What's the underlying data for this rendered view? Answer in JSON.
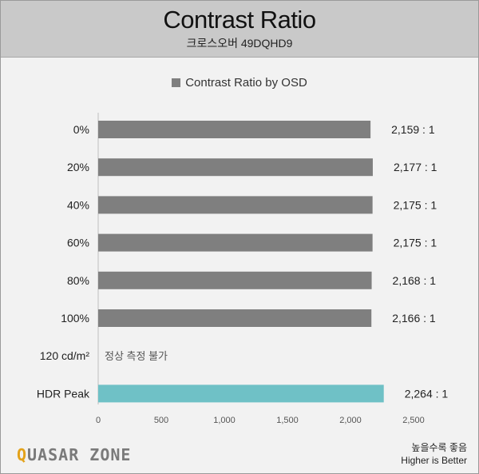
{
  "header": {
    "title": "Contrast Ratio",
    "subtitle": "크로스오버 49DQHD9"
  },
  "brand": {
    "prefix": "Q",
    "rest": "UASAR ZONE"
  },
  "footnote": {
    "line1": "높을수록 좋음",
    "line2": "Higher is Better"
  },
  "colors": {
    "header_bg": "#c9c9c9",
    "panel_bg": "#f2f2f2",
    "bar_default": "#7f7f7f",
    "bar_highlight": "#6fc1c6",
    "brand_accent": "#e3a21a"
  },
  "chart_data": {
    "type": "bar",
    "orientation": "horizontal",
    "legend": {
      "entries": [
        "Contrast Ratio by OSD"
      ],
      "placement": "top-center"
    },
    "categories": [
      "0%",
      "20%",
      "40%",
      "60%",
      "80%",
      "100%",
      "120 cd/m²",
      "HDR Peak"
    ],
    "values": [
      2159,
      2177,
      2175,
      2175,
      2168,
      2166,
      null,
      2264
    ],
    "value_labels": [
      "2,159 : 1",
      "2,177 : 1",
      "2,175 : 1",
      "2,175 : 1",
      "2,168 : 1",
      "2,166 : 1",
      "",
      "2,264 : 1"
    ],
    "annotations": [
      {
        "category": "120 cd/m²",
        "text": "정상 측정 불가"
      }
    ],
    "highlight": [
      "HDR Peak"
    ],
    "xlim": [
      0,
      2500
    ],
    "xticks": [
      0,
      500,
      1000,
      1500,
      2000,
      2500
    ],
    "xtick_labels": [
      "0",
      "500",
      "1,000",
      "1,500",
      "2,000",
      "2,500"
    ],
    "grid": false
  }
}
